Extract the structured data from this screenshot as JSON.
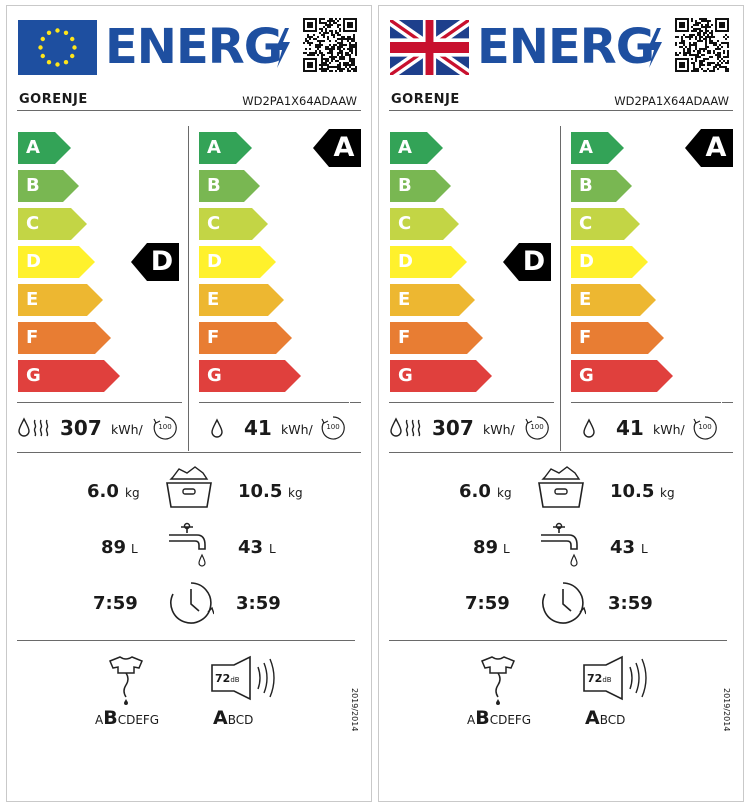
{
  "labels": [
    {
      "region": "EU",
      "flag_icon": "eu-flag-icon",
      "header_word": "ENERG",
      "qr_icon": "qr-code-icon",
      "supplier": "GORENJE",
      "model": "WD2PA1X64ADAAW",
      "scale_letters": [
        "A",
        "B",
        "C",
        "D",
        "E",
        "F",
        "G"
      ],
      "scale_colors": [
        "#33a357",
        "#79b752",
        "#c3d545",
        "#fff12c",
        "#edb731",
        "#e87d33",
        "#e0403d"
      ],
      "wash_dry_class": "D",
      "wash_only_class": "A",
      "energy_wash_dry": "307",
      "energy_wash_only": "41",
      "energy_unit": "kWh/",
      "cycles": "100",
      "capacity_wash_dry": "10.5",
      "capacity_wash_only": "6.0",
      "capacity_unit": "kg",
      "water_wash_dry": "43",
      "water_wash_only": "89",
      "water_unit": "L",
      "duration_wash_dry": "3:59",
      "duration_wash_only": "7:59",
      "spin_class_prefix": "A",
      "spin_class_selected": "B",
      "spin_class_suffix": "CDEFG",
      "noise_value": "72",
      "noise_unit": "dB",
      "noise_class_selected": "A",
      "noise_class_suffix": "BCD",
      "regulation": "2019/2014"
    },
    {
      "region": "UK",
      "flag_icon": "uk-flag-icon",
      "header_word": "ENERG",
      "qr_icon": "qr-code-icon",
      "supplier": "GORENJE",
      "model": "WD2PA1X64ADAAW",
      "scale_letters": [
        "A",
        "B",
        "C",
        "D",
        "E",
        "F",
        "G"
      ],
      "scale_colors": [
        "#33a357",
        "#79b752",
        "#c3d545",
        "#fff12c",
        "#edb731",
        "#e87d33",
        "#e0403d"
      ],
      "wash_dry_class": "D",
      "wash_only_class": "A",
      "energy_wash_dry": "307",
      "energy_wash_only": "41",
      "energy_unit": "kWh/",
      "cycles": "100",
      "capacity_wash_dry": "10.5",
      "capacity_wash_only": "6.0",
      "capacity_unit": "kg",
      "water_wash_dry": "43",
      "water_wash_only": "89",
      "water_unit": "L",
      "duration_wash_dry": "3:59",
      "duration_wash_only": "7:59",
      "spin_class_prefix": "A",
      "spin_class_selected": "B",
      "spin_class_suffix": "CDEFG",
      "noise_value": "72",
      "noise_unit": "dB",
      "noise_class_selected": "A",
      "noise_class_suffix": "BCD",
      "regulation": "2019/2014"
    }
  ]
}
